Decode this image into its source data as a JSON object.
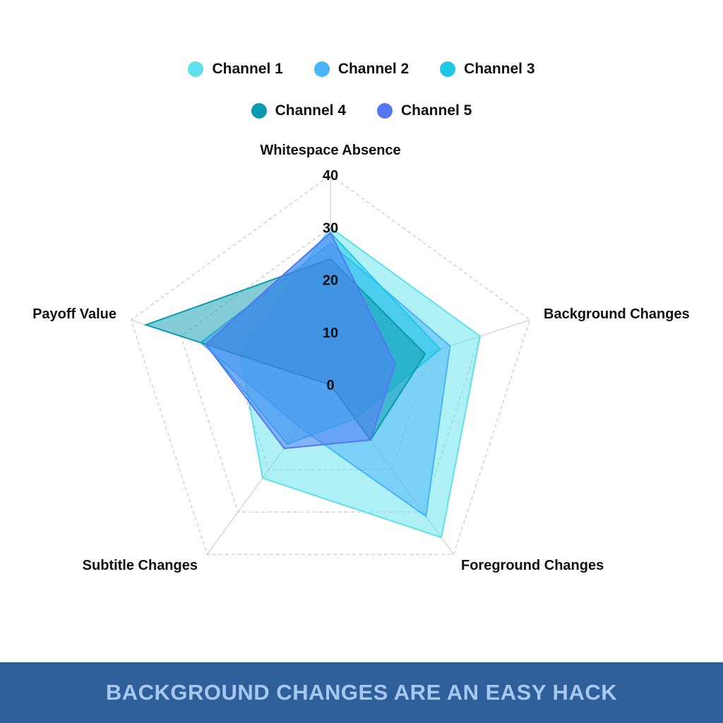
{
  "chart_data": {
    "type": "radar",
    "axes": [
      "Whitespace Absence",
      "Background Changes",
      "Foreground Changes",
      "Subtitle Changes",
      "Payoff Value"
    ],
    "r_ticks": [
      0,
      10,
      20,
      30,
      40
    ],
    "r_range": [
      0,
      40
    ],
    "grid": "dashed pentagons",
    "legend_position": "top",
    "series": [
      {
        "name": "Channel 1",
        "values": [
          30,
          30,
          36,
          22,
          18
        ],
        "color": "#5ee1ea"
      },
      {
        "name": "Channel 2",
        "values": [
          27,
          24,
          31,
          10,
          26
        ],
        "color": "#48b4f8"
      },
      {
        "name": "Channel 3",
        "values": [
          29,
          22,
          8,
          14,
          25
        ],
        "color": "#1ec8e3"
      },
      {
        "name": "Channel 4",
        "values": [
          24,
          19,
          13,
          0,
          37
        ],
        "color": "#0a9ab0"
      },
      {
        "name": "Channel 5",
        "values": [
          29,
          13,
          13,
          15,
          25
        ],
        "color": "#5675f5"
      }
    ]
  },
  "legend": {
    "row1": [
      {
        "label": "Channel 1",
        "color": "#5ee1ea"
      },
      {
        "label": "Channel 2",
        "color": "#48b4f8"
      },
      {
        "label": "Channel 3",
        "color": "#1ec8e3"
      }
    ],
    "row2": [
      {
        "label": "Channel 4",
        "color": "#0a9ab0"
      },
      {
        "label": "Channel 5",
        "color": "#5675f5"
      }
    ]
  },
  "footer": {
    "text": "BACKGROUND CHANGES ARE AN EASY HACK",
    "background_color": "#2e5f9a",
    "text_color": "#a6c8ef"
  }
}
